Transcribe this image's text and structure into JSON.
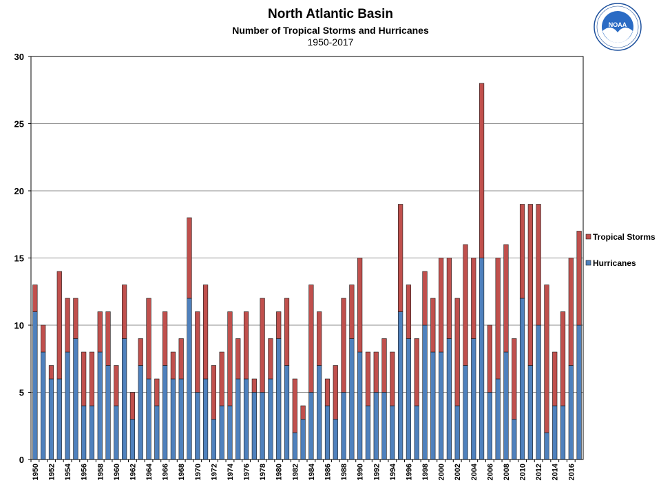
{
  "header": {
    "title": "North Atlantic Basin",
    "subtitle": "Number of Tropical Storms and Hurricanes",
    "period": "1950-2017"
  },
  "logo": {
    "text": "NOAA",
    "ring_text": "NATIONAL OCEANIC AND ATMOSPHERIC ADMINISTRATION · U.S. DEPARTMENT OF COMMERCE",
    "colors": {
      "outer": "#ffffff",
      "ring": "#1b4f9c",
      "sky": "#2a6bc4",
      "water": "#ffffff"
    }
  },
  "chart_data": {
    "type": "bar",
    "stacked": true,
    "title": "North Atlantic Basin",
    "subtitle": "Number of Tropical Storms and Hurricanes",
    "xlabel": "",
    "ylabel": "",
    "ylim": [
      0,
      30
    ],
    "yticks": [
      0,
      5,
      10,
      15,
      20,
      25,
      30
    ],
    "grid": true,
    "legend_position": "right",
    "categories": [
      1950,
      1951,
      1952,
      1953,
      1954,
      1955,
      1956,
      1957,
      1958,
      1959,
      1960,
      1961,
      1962,
      1963,
      1964,
      1965,
      1966,
      1967,
      1968,
      1969,
      1970,
      1971,
      1972,
      1973,
      1974,
      1975,
      1976,
      1977,
      1978,
      1979,
      1980,
      1981,
      1982,
      1983,
      1984,
      1985,
      1986,
      1987,
      1988,
      1989,
      1990,
      1991,
      1992,
      1993,
      1994,
      1995,
      1996,
      1997,
      1998,
      1999,
      2000,
      2001,
      2002,
      2003,
      2004,
      2005,
      2006,
      2007,
      2008,
      2009,
      2010,
      2011,
      2012,
      2013,
      2014,
      2015,
      2016,
      2017
    ],
    "tick_labels": [
      "1950",
      "",
      "1952",
      "",
      "1954",
      "",
      "1956",
      "",
      "1958",
      "",
      "1960",
      "",
      "1962",
      "",
      "1964",
      "",
      "1966",
      "",
      "1968",
      "",
      "1970",
      "",
      "1972",
      "",
      "1974",
      "",
      "1976",
      "",
      "1978",
      "",
      "1980",
      "",
      "1982",
      "",
      "1984",
      "",
      "1986",
      "",
      "1988",
      "",
      "1990",
      "",
      "1992",
      "",
      "1994",
      "",
      "1996",
      "",
      "1998",
      "",
      "2000",
      "",
      "2002",
      "",
      "2004",
      "",
      "2006",
      "",
      "2008",
      "",
      "2010",
      "",
      "2012",
      "",
      "2014",
      "",
      "2016",
      ""
    ],
    "series": [
      {
        "name": "Hurricanes",
        "color": "#4f81bd",
        "values": [
          11,
          8,
          6,
          6,
          8,
          9,
          4,
          4,
          8,
          7,
          4,
          9,
          3,
          7,
          6,
          4,
          7,
          6,
          6,
          12,
          5,
          6,
          3,
          4,
          4,
          6,
          6,
          5,
          5,
          6,
          9,
          7,
          2,
          3,
          5,
          7,
          4,
          3,
          5,
          9,
          8,
          4,
          5,
          5,
          4,
          11,
          9,
          4,
          10,
          8,
          8,
          9,
          4,
          7,
          9,
          15,
          5,
          6,
          8,
          3,
          12,
          7,
          10,
          2,
          4,
          4,
          7,
          10
        ]
      },
      {
        "name": "Tropical Storms",
        "color": "#c0504d",
        "values": [
          2,
          2,
          1,
          8,
          4,
          3,
          4,
          4,
          3,
          4,
          3,
          4,
          2,
          2,
          6,
          2,
          4,
          2,
          3,
          6,
          6,
          7,
          4,
          4,
          7,
          3,
          5,
          1,
          7,
          3,
          2,
          5,
          4,
          1,
          8,
          4,
          2,
          4,
          7,
          4,
          7,
          4,
          3,
          4,
          4,
          8,
          4,
          5,
          4,
          4,
          7,
          6,
          8,
          9,
          6,
          13,
          5,
          9,
          8,
          6,
          7,
          12,
          9,
          11,
          4,
          7,
          8,
          7
        ]
      }
    ]
  }
}
